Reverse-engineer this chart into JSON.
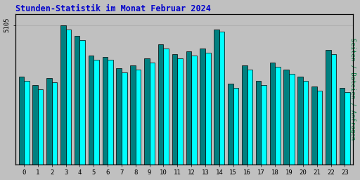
{
  "title": "Stunden-Statistik im Monat Februar 2024",
  "ylabel": "Seiten / Dateien / Anfragen",
  "xlabel_ticks": [
    0,
    1,
    2,
    3,
    4,
    5,
    6,
    7,
    8,
    9,
    10,
    11,
    12,
    13,
    14,
    15,
    16,
    17,
    18,
    19,
    20,
    21,
    22,
    23
  ],
  "bar1_color": "#008080",
  "bar2_color": "#00ffff",
  "background_color": "#c0c0c0",
  "plot_bg_color": "#c0c0c0",
  "title_color": "#0000cc",
  "ylabel_color": "#008040",
  "border_color": "#000000",
  "grid_color": "#b0b0b0",
  "ytick_label": "5105",
  "values1": [
    63,
    57,
    62,
    100,
    92,
    78,
    77,
    69,
    71,
    76,
    86,
    79,
    81,
    83,
    97,
    58,
    71,
    60,
    73,
    68,
    63,
    56,
    82,
    55
  ],
  "values2": [
    60,
    54,
    59,
    97,
    89,
    75,
    75,
    66,
    68,
    73,
    83,
    76,
    78,
    80,
    95,
    55,
    68,
    57,
    70,
    65,
    60,
    53,
    79,
    52
  ],
  "ylim": [
    0,
    108
  ],
  "ymax_tick_val": 100,
  "figsize": [
    5.12,
    2.56
  ],
  "dpi": 100
}
